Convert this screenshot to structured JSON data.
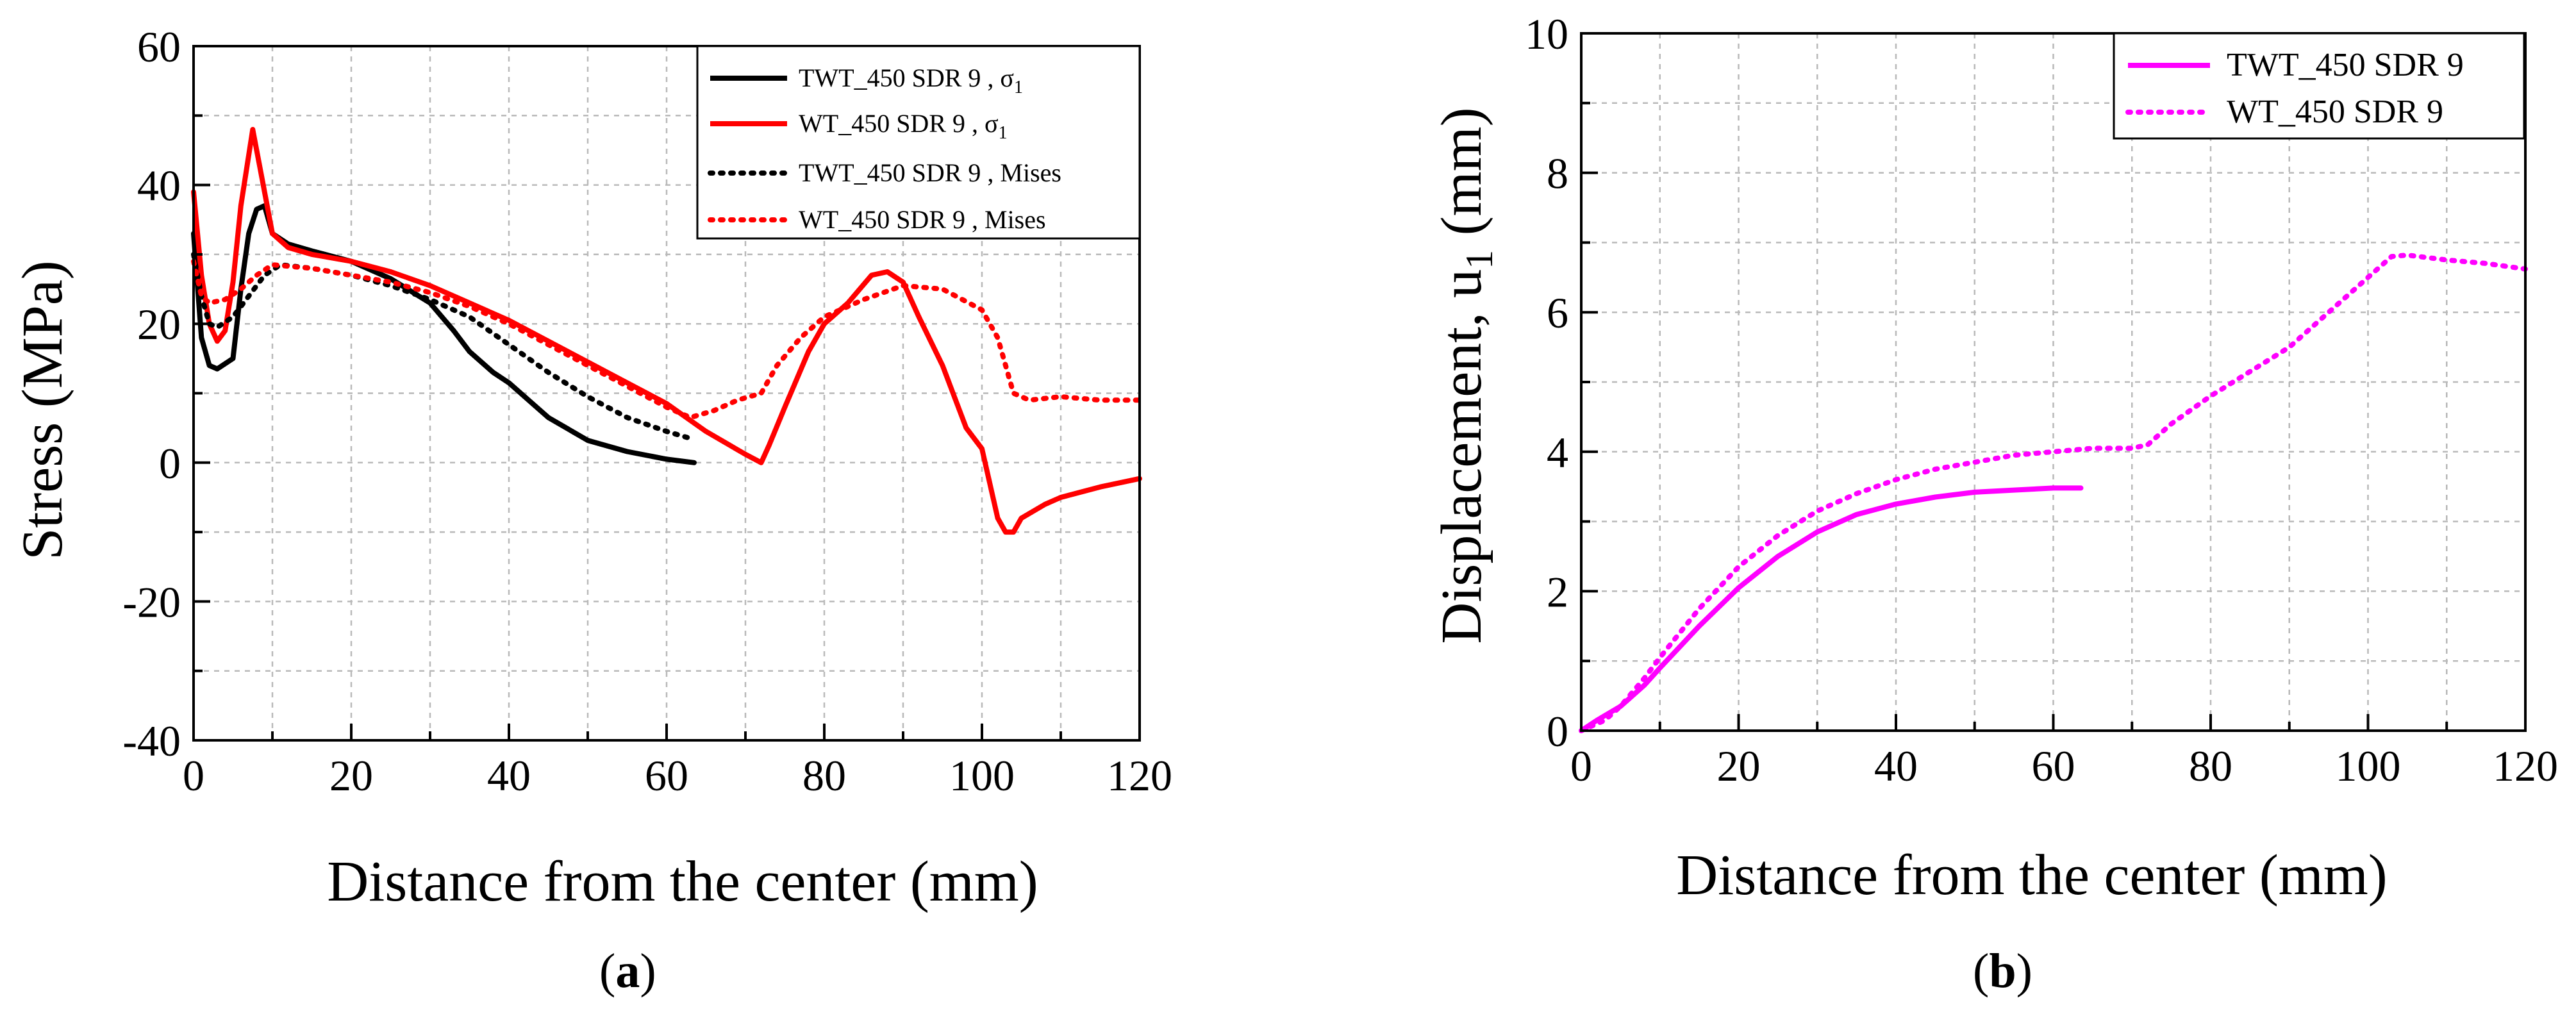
{
  "chart_data": [
    {
      "type": "line",
      "panel_label": "a",
      "xlabel": "Distance from the center (mm)",
      "ylabel": "Stress (MPa)",
      "xlim": [
        0,
        120
      ],
      "ylim": [
        -40,
        60
      ],
      "xticks": [
        0,
        20,
        40,
        60,
        80,
        100,
        120
      ],
      "yticks": [
        -40,
        -20,
        0,
        20,
        40,
        60
      ],
      "xtick_labels": [
        "0",
        "20",
        "40",
        "60",
        "80",
        "100",
        "120"
      ],
      "ytick_labels": [
        "-40",
        "-20",
        "0",
        "20",
        "40",
        "60"
      ],
      "grid": true,
      "legend_position": "top-right",
      "series": [
        {
          "name": "TWT_450 SDR 9 , σ",
          "name_subscript": "1",
          "color": "#000000",
          "style": "solid",
          "points": [
            [
              0,
              33
            ],
            [
              1,
              18
            ],
            [
              2,
              14
            ],
            [
              3,
              13.5
            ],
            [
              5,
              15
            ],
            [
              6,
              25
            ],
            [
              7,
              33
            ],
            [
              8,
              36.5
            ],
            [
              9,
              37
            ],
            [
              10,
              33
            ],
            [
              12,
              31.5
            ],
            [
              15,
              30.5
            ],
            [
              20,
              29
            ],
            [
              25,
              26.5
            ],
            [
              30,
              23
            ],
            [
              33,
              19
            ],
            [
              35,
              16
            ],
            [
              38,
              13
            ],
            [
              40,
              11.5
            ],
            [
              45,
              6.5
            ],
            [
              50,
              3.2
            ],
            [
              55,
              1.6
            ],
            [
              60,
              0.5
            ],
            [
              63.5,
              0
            ]
          ]
        },
        {
          "name": "WT_450 SDR 9 , σ",
          "name_subscript": "1",
          "color": "#ff0000",
          "style": "solid",
          "points": [
            [
              0,
              39
            ],
            [
              1,
              27
            ],
            [
              2,
              20
            ],
            [
              3,
              17.5
            ],
            [
              4,
              19
            ],
            [
              5,
              26
            ],
            [
              6,
              37
            ],
            [
              7.5,
              48
            ],
            [
              8.5,
              42
            ],
            [
              10,
              33
            ],
            [
              12,
              31
            ],
            [
              15,
              30
            ],
            [
              20,
              29
            ],
            [
              25,
              27.5
            ],
            [
              30,
              25.5
            ],
            [
              35,
              23
            ],
            [
              40,
              20.5
            ],
            [
              45,
              17.5
            ],
            [
              50,
              14.5
            ],
            [
              55,
              11.5
            ],
            [
              60,
              8.5
            ],
            [
              65,
              4.5
            ],
            [
              70,
              1.2
            ],
            [
              72,
              0
            ],
            [
              73,
              2.5
            ],
            [
              75,
              8
            ],
            [
              78,
              16
            ],
            [
              80,
              20
            ],
            [
              83,
              23
            ],
            [
              86,
              27
            ],
            [
              88,
              27.5
            ],
            [
              90,
              26
            ],
            [
              92,
              21
            ],
            [
              95,
              14
            ],
            [
              98,
              5
            ],
            [
              100,
              2
            ],
            [
              101,
              -3
            ],
            [
              102,
              -8
            ],
            [
              103,
              -10
            ],
            [
              104,
              -10
            ],
            [
              105,
              -8
            ],
            [
              108,
              -6
            ],
            [
              110,
              -5
            ],
            [
              115,
              -3.5
            ],
            [
              120,
              -2.3
            ]
          ]
        },
        {
          "name": "TWT_450 SDR 9 , Mises",
          "color": "#000000",
          "style": "dotted",
          "points": [
            [
              0,
              30
            ],
            [
              1,
              24
            ],
            [
              2,
              20
            ],
            [
              3,
              19.5
            ],
            [
              5,
              21
            ],
            [
              7,
              24
            ],
            [
              9,
              27
            ],
            [
              11,
              28.5
            ],
            [
              15,
              28
            ],
            [
              20,
              27
            ],
            [
              25,
              25.5
            ],
            [
              30,
              23.5
            ],
            [
              35,
              21
            ],
            [
              40,
              17
            ],
            [
              45,
              13
            ],
            [
              50,
              9.5
            ],
            [
              55,
              6.5
            ],
            [
              60,
              4.5
            ],
            [
              63,
              3.5
            ]
          ]
        },
        {
          "name": "WT_450 SDR 9 , Mises",
          "color": "#ff0000",
          "style": "dotted",
          "points": [
            [
              0,
              29
            ],
            [
              1,
              24
            ],
            [
              2,
              23
            ],
            [
              4,
              23.5
            ],
            [
              6,
              25
            ],
            [
              8,
              27
            ],
            [
              10,
              28.5
            ],
            [
              15,
              28
            ],
            [
              20,
              27
            ],
            [
              25,
              26
            ],
            [
              30,
              24.5
            ],
            [
              35,
              22.5
            ],
            [
              40,
              20
            ],
            [
              45,
              17
            ],
            [
              50,
              14
            ],
            [
              55,
              11
            ],
            [
              60,
              8
            ],
            [
              63,
              6.5
            ],
            [
              66,
              7.5
            ],
            [
              69,
              9
            ],
            [
              72,
              10
            ],
            [
              74,
              14
            ],
            [
              77,
              18
            ],
            [
              80,
              21
            ],
            [
              85,
              23.5
            ],
            [
              90,
              25.5
            ],
            [
              95,
              25
            ],
            [
              100,
              22
            ],
            [
              102,
              18
            ],
            [
              104,
              10
            ],
            [
              106,
              9
            ],
            [
              110,
              9.5
            ],
            [
              115,
              9
            ],
            [
              120,
              9
            ]
          ]
        }
      ]
    },
    {
      "type": "line",
      "panel_label": "b",
      "xlabel": "Distance from the center (mm)",
      "ylabel": "Displacement, u",
      "ylabel_subscript": "1",
      "ylabel_suffix": " (mm)",
      "xlim": [
        0,
        120
      ],
      "ylim": [
        0,
        10
      ],
      "xticks": [
        0,
        20,
        40,
        60,
        80,
        100,
        120
      ],
      "yticks": [
        0,
        2,
        4,
        6,
        8,
        10
      ],
      "xtick_labels": [
        "0",
        "20",
        "40",
        "60",
        "80",
        "100",
        "120"
      ],
      "ytick_labels": [
        "0",
        "2",
        "4",
        "6",
        "8",
        "10"
      ],
      "grid": true,
      "legend_position": "top-right",
      "series": [
        {
          "name": "TWT_450 SDR 9",
          "color": "#ff00ff",
          "style": "solid",
          "points": [
            [
              0,
              0
            ],
            [
              2,
              0.15
            ],
            [
              5,
              0.35
            ],
            [
              8,
              0.65
            ],
            [
              10,
              0.9
            ],
            [
              15,
              1.5
            ],
            [
              20,
              2.05
            ],
            [
              25,
              2.5
            ],
            [
              30,
              2.85
            ],
            [
              35,
              3.1
            ],
            [
              40,
              3.25
            ],
            [
              45,
              3.35
            ],
            [
              50,
              3.42
            ],
            [
              55,
              3.45
            ],
            [
              60,
              3.48
            ],
            [
              63.5,
              3.48
            ]
          ]
        },
        {
          "name": "WT_450 SDR 9",
          "color": "#ff00ff",
          "style": "dotted",
          "points": [
            [
              0,
              0
            ],
            [
              3,
              0.15
            ],
            [
              5,
              0.35
            ],
            [
              8,
              0.75
            ],
            [
              10,
              1.05
            ],
            [
              15,
              1.75
            ],
            [
              20,
              2.35
            ],
            [
              25,
              2.8
            ],
            [
              30,
              3.15
            ],
            [
              35,
              3.4
            ],
            [
              40,
              3.6
            ],
            [
              45,
              3.75
            ],
            [
              50,
              3.85
            ],
            [
              55,
              3.95
            ],
            [
              60,
              4.0
            ],
            [
              65,
              4.05
            ],
            [
              70,
              4.05
            ],
            [
              72,
              4.1
            ],
            [
              75,
              4.4
            ],
            [
              80,
              4.8
            ],
            [
              85,
              5.15
            ],
            [
              90,
              5.5
            ],
            [
              95,
              6.0
            ],
            [
              100,
              6.5
            ],
            [
              103,
              6.8
            ],
            [
              105,
              6.82
            ],
            [
              110,
              6.75
            ],
            [
              115,
              6.7
            ],
            [
              120,
              6.62
            ]
          ]
        }
      ]
    }
  ]
}
